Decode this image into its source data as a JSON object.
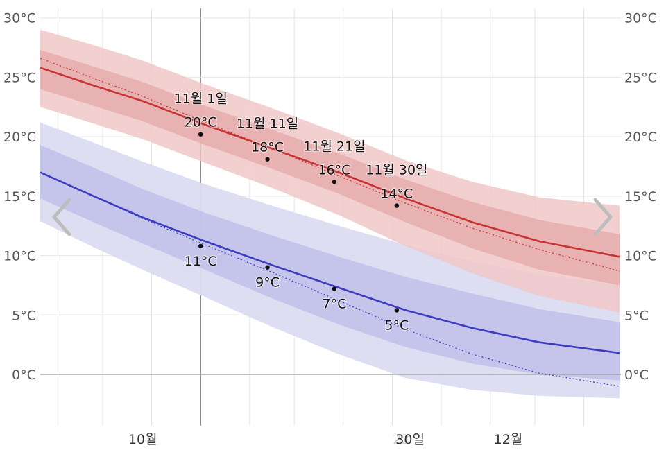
{
  "chart_data": {
    "type": "line",
    "title": "",
    "xlabel": "",
    "ylabel": "",
    "ylim": [
      -3.5,
      31.5
    ],
    "yticks": [
      0,
      5,
      10,
      15,
      20,
      25,
      30
    ],
    "y_unit": "°C",
    "x_day_range": [
      8,
      138
    ],
    "month_labels": [
      {
        "label": "10월",
        "day": 31
      },
      {
        "label": "30일",
        "day": 91
      },
      {
        "label": "12월",
        "day": 113
      }
    ],
    "faint_label": {
      "text": "22",
      "day": 89
    },
    "series": [
      {
        "name": "high",
        "color": "#c83232",
        "x": [
          8,
          20,
          31,
          45,
          60,
          75,
          90,
          105,
          120,
          138
        ],
        "values": [
          25.8,
          24.3,
          23.0,
          21.0,
          19.0,
          17.0,
          14.8,
          12.8,
          11.2,
          9.9
        ],
        "band_inner_low": [
          24.0,
          22.6,
          21.3,
          19.3,
          17.3,
          15.2,
          12.8,
          10.6,
          8.8,
          7.5
        ],
        "band_inner_high": [
          27.3,
          25.9,
          24.6,
          22.6,
          20.6,
          18.6,
          16.4,
          14.5,
          13.0,
          11.8
        ],
        "band_outer_low": [
          22.5,
          21.1,
          19.8,
          17.8,
          15.7,
          13.4,
          10.8,
          8.5,
          6.6,
          5.2
        ],
        "band_outer_high": [
          29.0,
          27.7,
          26.4,
          24.4,
          22.4,
          20.3,
          18.0,
          16.2,
          14.9,
          14.2
        ],
        "trend": [
          26.6,
          24.9,
          23.4,
          21.2,
          19.0,
          16.7,
          14.4,
          12.3,
          10.5,
          8.7
        ]
      },
      {
        "name": "low",
        "color": "#3c3cc0",
        "x": [
          8,
          20,
          31,
          45,
          60,
          75,
          90,
          105,
          120,
          138
        ],
        "values": [
          17.0,
          15.0,
          13.2,
          11.2,
          9.2,
          7.3,
          5.4,
          3.9,
          2.7,
          1.8
        ],
        "band_inner_low": [
          14.8,
          12.8,
          11.0,
          8.8,
          6.4,
          4.2,
          2.3,
          0.9,
          0.0,
          -0.5
        ],
        "band_inner_high": [
          19.3,
          17.4,
          15.6,
          13.6,
          11.7,
          9.9,
          8.2,
          6.8,
          5.5,
          4.4
        ],
        "band_outer_low": [
          12.9,
          10.7,
          8.8,
          6.5,
          4.0,
          1.7,
          -0.3,
          -1.3,
          -1.8,
          -2.0
        ],
        "band_outer_high": [
          21.2,
          19.5,
          17.9,
          16.0,
          14.2,
          12.5,
          10.9,
          9.5,
          8.4,
          7.5
        ],
        "trend": [
          17.0,
          15.0,
          13.1,
          10.9,
          8.6,
          6.2,
          3.8,
          1.7,
          0.1,
          -1.0
        ]
      }
    ],
    "annotations": [
      {
        "series": "high",
        "day": 44,
        "value": 20.2,
        "date_label": "11월 1일",
        "value_label": "20°C",
        "position": "above"
      },
      {
        "series": "high",
        "day": 59,
        "value": 18.1,
        "date_label": "11월 11일",
        "value_label": "18°C",
        "position": "above"
      },
      {
        "series": "high",
        "day": 74,
        "value": 16.2,
        "date_label": "11월 21일",
        "value_label": "16°C",
        "position": "above"
      },
      {
        "series": "high",
        "day": 88,
        "value": 14.2,
        "date_label": "11월 30일",
        "value_label": "14°C",
        "position": "above"
      },
      {
        "series": "low",
        "day": 44,
        "value": 10.8,
        "value_label": "11°C",
        "position": "below"
      },
      {
        "series": "low",
        "day": 59,
        "value": 9.0,
        "value_label": "9°C",
        "position": "below"
      },
      {
        "series": "low",
        "day": 74,
        "value": 7.2,
        "value_label": "7°C",
        "position": "below"
      },
      {
        "series": "low",
        "day": 88,
        "value": 5.4,
        "value_label": "5°C",
        "position": "below"
      }
    ],
    "gridline_days": [
      12,
      22,
      33,
      44,
      55,
      65,
      76,
      87,
      98,
      109,
      119,
      130
    ],
    "highlight_day": 44,
    "grid": true
  }
}
